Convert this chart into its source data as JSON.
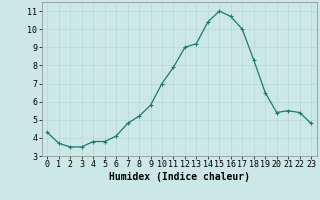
{
  "x": [
    0,
    1,
    2,
    3,
    4,
    5,
    6,
    7,
    8,
    9,
    10,
    11,
    12,
    13,
    14,
    15,
    16,
    17,
    18,
    19,
    20,
    21,
    22,
    23
  ],
  "y": [
    4.3,
    3.7,
    3.5,
    3.5,
    3.8,
    3.8,
    4.1,
    4.8,
    5.2,
    5.8,
    7.0,
    7.9,
    9.0,
    9.2,
    10.4,
    11.0,
    10.7,
    10.0,
    8.3,
    6.5,
    5.4,
    5.5,
    5.4,
    4.8
  ],
  "line_color": "#1a7a6e",
  "marker": "+",
  "marker_color": "#1a7a6e",
  "bg_color": "#cce8e6",
  "grid_color": "#b8d8d6",
  "xlabel": "Humidex (Indice chaleur)",
  "xlabel_fontsize": 7,
  "tick_fontsize": 6,
  "ylim": [
    3,
    11.5
  ],
  "xlim": [
    -0.5,
    23.5
  ],
  "yticks": [
    3,
    4,
    5,
    6,
    7,
    8,
    9,
    10,
    11
  ],
  "xticks": [
    0,
    1,
    2,
    3,
    4,
    5,
    6,
    7,
    8,
    9,
    10,
    11,
    12,
    13,
    14,
    15,
    16,
    17,
    18,
    19,
    20,
    21,
    22,
    23
  ]
}
